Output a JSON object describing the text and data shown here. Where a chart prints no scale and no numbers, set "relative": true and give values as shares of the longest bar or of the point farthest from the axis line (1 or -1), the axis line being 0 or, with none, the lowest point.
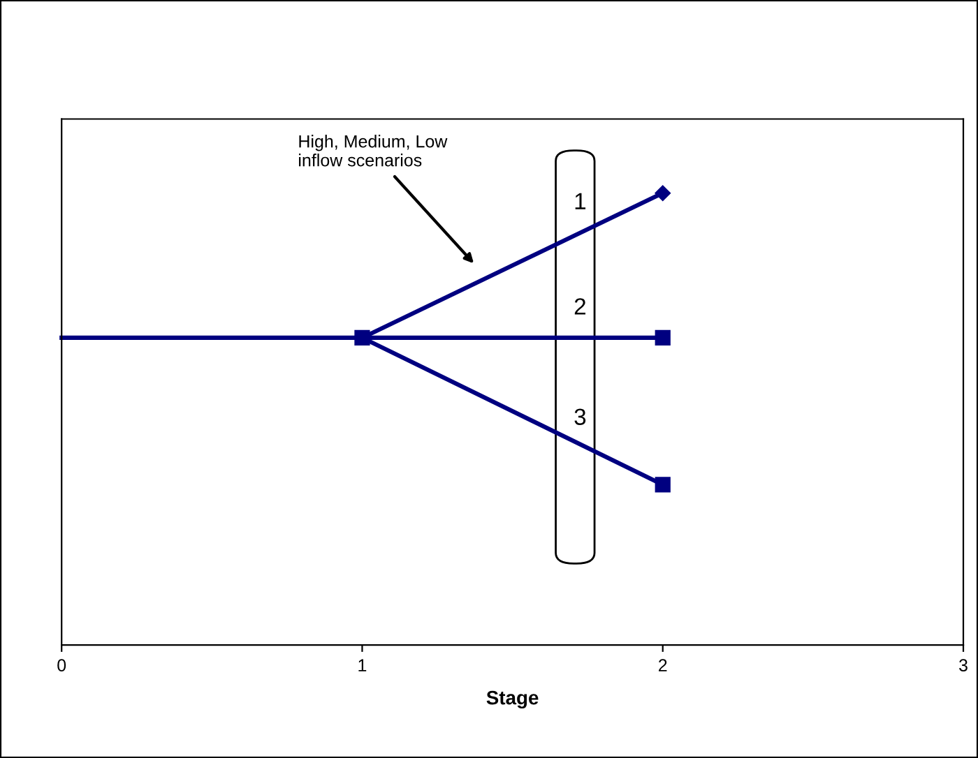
{
  "chart_data": {
    "type": "line",
    "relative": true,
    "xlabel": "Stage",
    "xlim": [
      0,
      3
    ],
    "xticks": [
      0,
      1,
      2,
      3
    ],
    "tick_labels": "x",
    "grid": false,
    "legend": false,
    "series": [
      {
        "x": [
          0,
          1
        ],
        "values": [
          0.68,
          0.68
        ],
        "color": "#000080",
        "marker": "square"
      },
      {
        "x": [
          1,
          2
        ],
        "values": [
          0.68,
          1
        ],
        "color": "#000080",
        "marker": "diamond"
      },
      {
        "x": [
          1,
          2
        ],
        "values": [
          0.68,
          0.68
        ],
        "color": "#000080",
        "marker": "square"
      },
      {
        "x": [
          1,
          2
        ],
        "values": [
          0.68,
          0.355
        ],
        "color": "#000080",
        "marker": "square"
      }
    ],
    "annotations": [
      "High, Medium, Low\ninflow scenarios",
      "1",
      "2",
      "3"
    ]
  }
}
